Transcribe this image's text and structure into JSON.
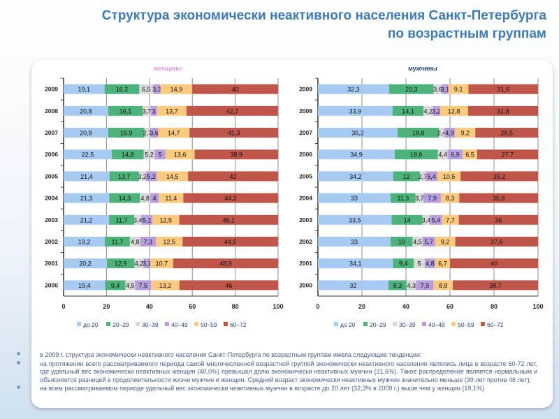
{
  "title_line1": "Структура экономически неактивного населения Санкт-Петербурга",
  "title_line2": "по возрастным группам",
  "colors": {
    "до 20": "#a6caf2",
    "20–29": "#4cb37a",
    "30–39": "#d9d9d9",
    "40–49": "#b69ee0",
    "50–59": "#fcca7c",
    "60–72": "#c0564a"
  },
  "chart_data": [
    {
      "type": "bar",
      "orientation": "horizontal",
      "stacked": true,
      "title": "женщины",
      "title_color": "#e07ad0",
      "categories": [
        "2009",
        "2008",
        "2007",
        "2006",
        "2005",
        "2004",
        "2003",
        "2002",
        "2001",
        "2000"
      ],
      "xlim": [
        0,
        100
      ],
      "xticks": [
        "0",
        "20",
        "40",
        "60",
        "80",
        "100"
      ],
      "grid": true,
      "legend": "bottom",
      "series": [
        {
          "name": "до 20",
          "values": [
            19.1,
            20.8,
            20.8,
            22.5,
            21.4,
            21.3,
            21.2,
            19.2,
            20.2,
            19.4
          ]
        },
        {
          "name": "20–29",
          "values": [
            16.2,
            16.1,
            16.9,
            14.8,
            13.7,
            14.3,
            11.7,
            11.7,
            12.9,
            9.4
          ]
        },
        {
          "name": "30–39",
          "values": [
            6.5,
            3.7,
            2.7,
            5.2,
            3.2,
            4.8,
            3.4,
            4.8,
            4.2,
            4.5
          ]
        },
        {
          "name": "40–49",
          "values": [
            3.3,
            3,
            3.6,
            5,
            5.2,
            4,
            5.1,
            7.3,
            3.1,
            7.5
          ]
        },
        {
          "name": "50–59",
          "values": [
            14.9,
            13.7,
            14.7,
            13.6,
            14.5,
            11.4,
            12.5,
            12.5,
            10.7,
            13.2
          ]
        },
        {
          "name": "60–72",
          "values": [
            40,
            42.7,
            41.3,
            38.9,
            42,
            44.2,
            46.1,
            44.5,
            48.9,
            46
          ]
        }
      ]
    },
    {
      "type": "bar",
      "orientation": "horizontal",
      "stacked": true,
      "title": "мужчины",
      "title_color": "#2a4a7a",
      "categories": [
        "2009",
        "2008",
        "2007",
        "2006",
        "2005",
        "2004",
        "2003",
        "2002",
        "2001",
        "2000"
      ],
      "xlim": [
        0,
        100
      ],
      "xticks": [
        "0",
        "20",
        "40",
        "60",
        "80",
        "100"
      ],
      "grid": true,
      "legend": "bottom",
      "series": [
        {
          "name": "до 20",
          "values": [
            32.3,
            33.9,
            36.2,
            34.9,
            34.2,
            33,
            33.5,
            33,
            34.1,
            32
          ]
        },
        {
          "name": "20–29",
          "values": [
            20.3,
            14.1,
            18.8,
            19.6,
            12,
            11.3,
            14,
            10,
            9.4,
            8.3
          ]
        },
        {
          "name": "30–39",
          "values": [
            3.6,
            4.2,
            2.4,
            4.4,
            2.7,
            3.7,
            3.4,
            4.5,
            5,
            4.3
          ]
        },
        {
          "name": "40–49",
          "values": [
            3.1,
            3.2,
            4.9,
            6.9,
            5.4,
            7.9,
            5.4,
            5.7,
            4.8,
            7.9
          ]
        },
        {
          "name": "50–59",
          "values": [
            9.1,
            12.8,
            9.2,
            6.5,
            10.5,
            8.3,
            7.7,
            9.2,
            6.7,
            8.8
          ]
        },
        {
          "name": "60–72",
          "values": [
            31.6,
            31.8,
            28.5,
            27.7,
            35.2,
            35.8,
            36,
            37.6,
            40,
            38.7
          ]
        }
      ]
    }
  ],
  "notes": [
    "в 2009 г. структура экономически неактивного населения Санкт-Петербурга по возрастным группам имела следующие тенденции:",
    "на протяжении всего рассматриваемого периода самой многочисленной возрастной группой экономически неактивного населения являлись лица в возрасте 60-72 лет, где удельный вес экономически неактивных женщин (40,0%) превышал долю экономически неактивных мужчин (31,6%). Такое распределение является нормальным и объясняется разницей в продолжительности жизни мужчин и женщин. Средний возраст экономически неактивных мужчин значительно меньше (39 лет против 46 лет);",
    "на всем рассматриваемом периоде удельный вес экономически неактивных мужчин в возрасте до 20 лет (32,3% в 2009 г.) выше чем у женщин (19,1%)"
  ]
}
